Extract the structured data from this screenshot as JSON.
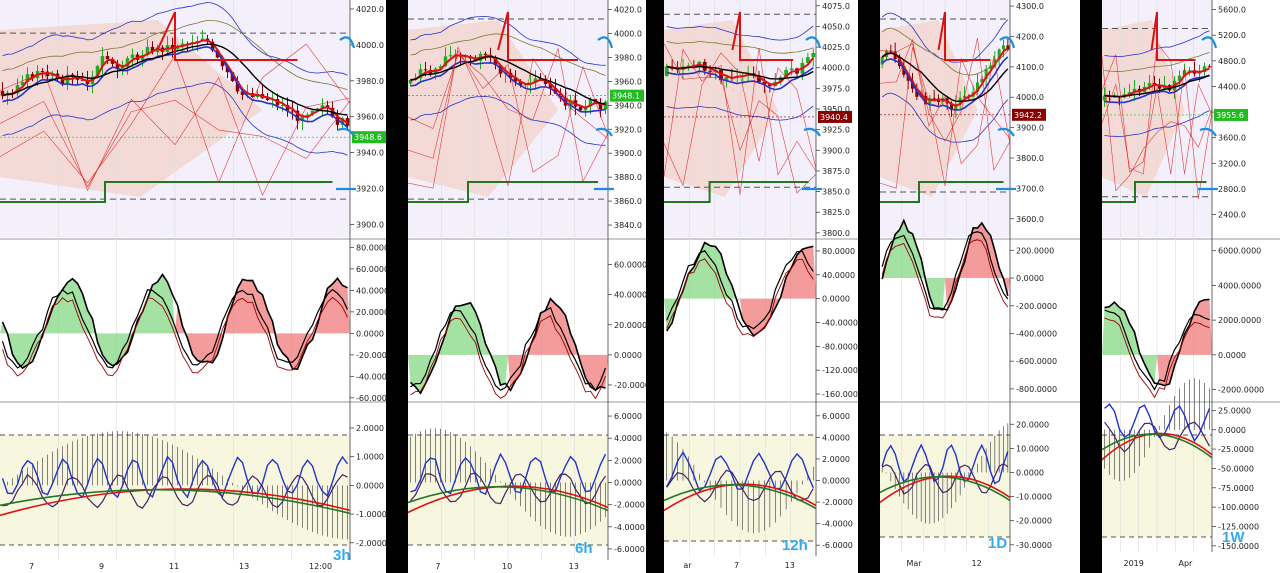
{
  "colors": {
    "up": "#22aa22",
    "down": "#880000",
    "redLine": "#dd1111",
    "blueLine": "#2233cc",
    "darkRed": "#990000",
    "black": "#000000",
    "green": "#227722",
    "annot": "#1a8fdd",
    "greenFill": "#7cd67c",
    "redFill": "#f07070",
    "olive": "#7a7a33",
    "cloud": "#f2c8b8",
    "lavender": "#e8e0f8",
    "yellowish": "#f7f7e0"
  },
  "panels": [
    {
      "label": "3h",
      "price_ticks": [
        "4020.0",
        "4000.0",
        "3980.0",
        "3960.0",
        "3940.0",
        "3920.0",
        "3900.0"
      ],
      "price_range": [
        3893,
        4025
      ],
      "current_price": "3948.6",
      "current_color": "#22bb22",
      "date_ticks": [
        "7",
        "9",
        "11",
        "13",
        "12:00"
      ],
      "mid_ticks": [
        "80.0000",
        "60.0000",
        "40.0000",
        "20.0000",
        "0.0000",
        "-20.0000",
        "-40.0000",
        "-60.0000"
      ],
      "mid_range": [
        -62,
        85
      ],
      "low_ticks": [
        "2.0000",
        "1.0000",
        "0.0000",
        "-1.0000",
        "-2.0000"
      ],
      "low_range": [
        -2.6,
        2.8
      ]
    },
    {
      "label": "6h",
      "price_ticks": [
        "4020.0",
        "4000.0",
        "3980.0",
        "3960.0",
        "3940.0",
        "3920.0",
        "3900.0",
        "3880.0",
        "3860.0",
        "3840.0"
      ],
      "price_range": [
        3830,
        4028
      ],
      "current_price": "3948.1",
      "current_color": "#22bb22",
      "date_ticks": [
        "7",
        "10",
        "13"
      ],
      "mid_ticks": [
        "60.0000",
        "40.0000",
        "20.0000",
        "0.0000",
        "-20.0000"
      ],
      "mid_range": [
        -30,
        75
      ],
      "low_ticks": [
        "6.0000",
        "4.0000",
        "2.0000",
        "0.0000",
        "-2.0000",
        "-4.0000",
        "-6.0000"
      ],
      "low_range": [
        -7,
        7
      ]
    },
    {
      "label": "12h",
      "price_ticks": [
        "4075.0",
        "4050.0",
        "4025.0",
        "4000.0",
        "3975.0",
        "3950.0",
        "3925.0",
        "3900.0",
        "3875.0",
        "3850.0",
        "3825.0",
        "3800.0"
      ],
      "price_range": [
        3795,
        4082
      ],
      "current_price": "3940.4",
      "current_color": "#880000",
      "date_ticks": [
        "ar",
        "7",
        "13"
      ],
      "mid_ticks": [
        "80.0000",
        "40.0000",
        "0.0000",
        "-40.0000",
        "-80.0000",
        "-120.0000",
        "-160.0000"
      ],
      "mid_range": [
        -170,
        95
      ],
      "low_ticks": [
        "6.0000",
        "4.0000",
        "2.0000",
        "0.0000",
        "-2.0000",
        "-4.0000",
        "-6.0000"
      ],
      "low_range": [
        -7,
        7
      ]
    },
    {
      "label": "1D",
      "price_ticks": [
        "4300.0",
        "4200.0",
        "4100.0",
        "4000.0",
        "3900.0",
        "3800.0",
        "3700.0",
        "3600.0"
      ],
      "price_range": [
        3540,
        4320
      ],
      "current_price": "3942.2",
      "current_color": "#880000",
      "date_ticks": [
        "Mar",
        "12"
      ],
      "mid_ticks": [
        "200.0000",
        "0.0000",
        "-200.0000",
        "-400.0000",
        "-600.0000",
        "-800.0000"
      ],
      "mid_range": [
        -880,
        260
      ],
      "low_ticks": [
        "20.0000",
        "10.0000",
        "0.0000",
        "-10.0000",
        "-20.0000",
        "-30.0000"
      ],
      "low_range": [
        -33,
        28
      ]
    },
    {
      "label": "1W",
      "price_ticks": [
        "5600.0",
        "5200.0",
        "4800.0",
        "4400.0",
        "4000.0",
        "3600.0",
        "3200.0",
        "2800.0",
        "2400.0"
      ],
      "price_range": [
        2050,
        5750
      ],
      "current_price": "3955.6",
      "current_color": "#22bb22",
      "date_ticks": [
        "2019",
        "Apr"
      ],
      "mid_ticks": [
        "6000.0000",
        "4000.0000",
        "2000.0000",
        "0.0000",
        "-2000.0000"
      ],
      "mid_range": [
        -2600,
        6500
      ],
      "low_ticks": [
        "25.0000",
        "0.0000",
        "-25.0000",
        "-50.0000",
        "-75.0000",
        "-100.0000",
        "-125.0000",
        "-150.0000"
      ],
      "low_range": [
        -158,
        32
      ]
    }
  ]
}
